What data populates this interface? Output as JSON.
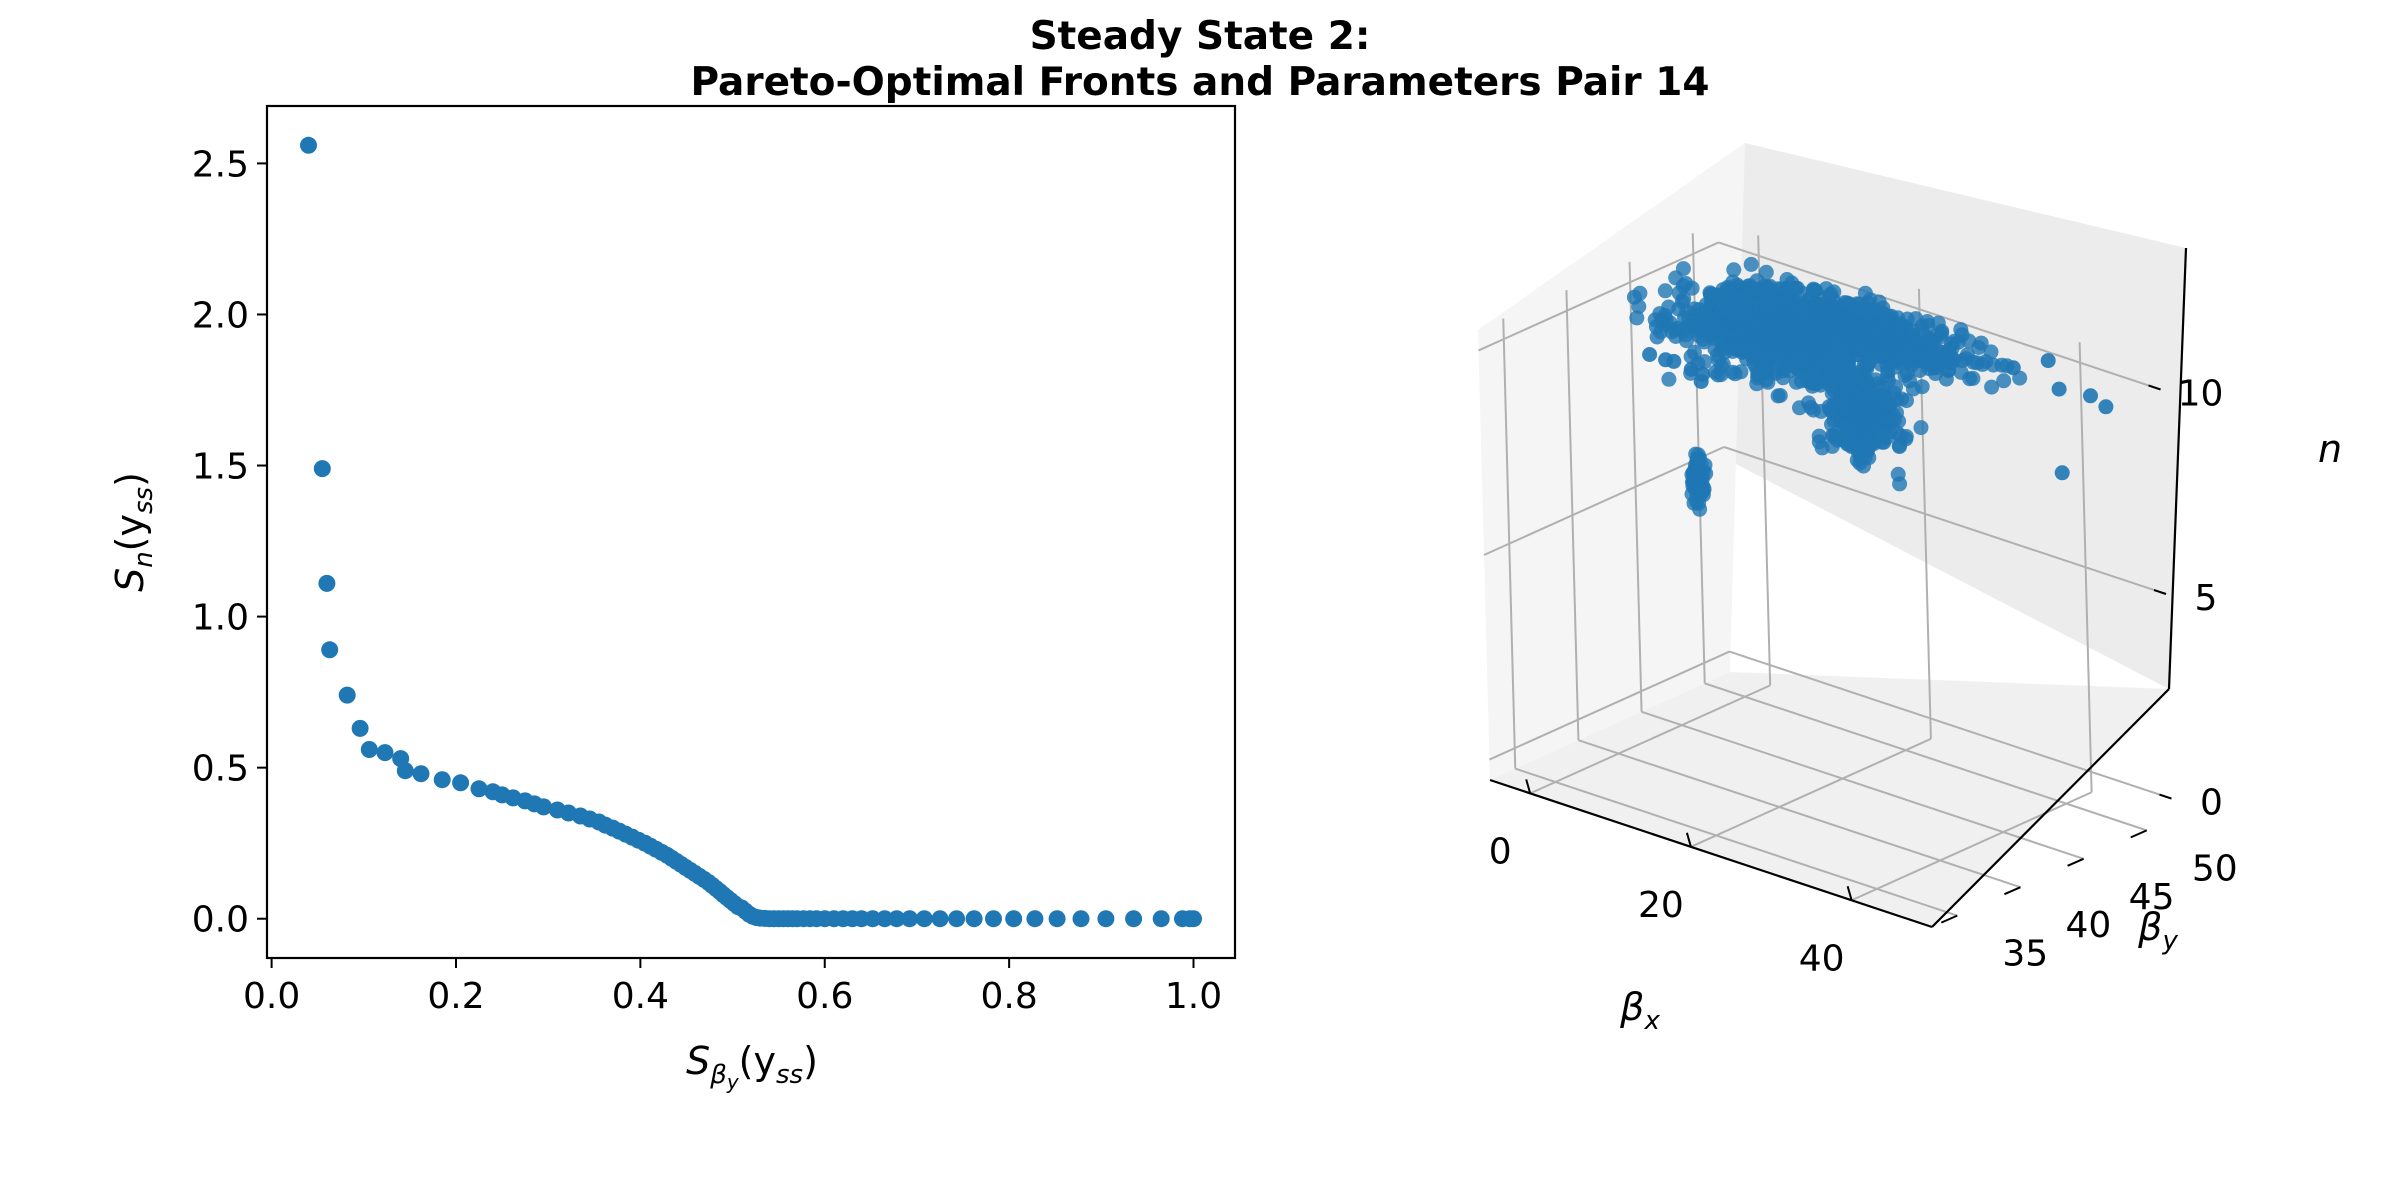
{
  "figure": {
    "title_line1": "Steady State 2:",
    "title_line2": "Pareto-Optimal Fronts and Parameters Pair 14"
  },
  "colors": {
    "marker": "#1f77b4",
    "axis": "#000000",
    "grid": "#b0b0b0",
    "pane": "#f2f2f2"
  },
  "chart_data": [
    {
      "type": "scatter",
      "xlabel_main": "S",
      "xlabel_sub": "β",
      "xlabel_subsub": "y",
      "xlabel_arg": "(y",
      "xlabel_argsub": "ss",
      "xlabel_close": ")",
      "ylabel_main": "S",
      "ylabel_sub": "n",
      "ylabel_arg": "(y",
      "ylabel_argsub": "ss",
      "ylabel_close": ")",
      "xlim": [
        -0.005,
        1.045
      ],
      "ylim": [
        -0.13,
        2.69
      ],
      "xticks": [
        0.0,
        0.2,
        0.4,
        0.6,
        0.8,
        1.0
      ],
      "xtick_labels": [
        "0.0",
        "0.2",
        "0.4",
        "0.6",
        "0.8",
        "1.0"
      ],
      "yticks": [
        0.0,
        0.5,
        1.0,
        1.5,
        2.0,
        2.5
      ],
      "ytick_labels": [
        "0.0",
        "0.5",
        "1.0",
        "1.5",
        "2.0",
        "2.5"
      ],
      "grid": false,
      "points": [
        [
          0.04,
          2.56
        ],
        [
          0.055,
          1.49
        ],
        [
          0.06,
          1.11
        ],
        [
          0.063,
          0.89
        ],
        [
          0.082,
          0.74
        ],
        [
          0.096,
          0.63
        ],
        [
          0.106,
          0.56
        ],
        [
          0.123,
          0.55
        ],
        [
          0.14,
          0.53
        ],
        [
          0.145,
          0.49
        ],
        [
          0.162,
          0.48
        ],
        [
          0.185,
          0.46
        ],
        [
          0.205,
          0.45
        ],
        [
          0.225,
          0.43
        ],
        [
          0.24,
          0.42
        ],
        [
          0.25,
          0.41
        ],
        [
          0.262,
          0.4
        ],
        [
          0.275,
          0.39
        ],
        [
          0.285,
          0.38
        ],
        [
          0.295,
          0.37
        ],
        [
          0.31,
          0.36
        ],
        [
          0.322,
          0.35
        ],
        [
          0.335,
          0.34
        ],
        [
          0.345,
          0.33
        ],
        [
          0.355,
          0.32
        ],
        [
          0.362,
          0.31
        ],
        [
          0.37,
          0.3
        ],
        [
          0.377,
          0.29
        ],
        [
          0.384,
          0.28
        ],
        [
          0.391,
          0.27
        ],
        [
          0.398,
          0.26
        ],
        [
          0.405,
          0.25
        ],
        [
          0.411,
          0.24
        ],
        [
          0.417,
          0.23
        ],
        [
          0.423,
          0.22
        ],
        [
          0.429,
          0.21
        ],
        [
          0.434,
          0.2
        ],
        [
          0.439,
          0.19
        ],
        [
          0.444,
          0.18
        ],
        [
          0.449,
          0.17
        ],
        [
          0.454,
          0.16
        ],
        [
          0.459,
          0.15
        ],
        [
          0.464,
          0.14
        ],
        [
          0.469,
          0.13
        ],
        [
          0.474,
          0.12
        ],
        [
          0.478,
          0.11
        ],
        [
          0.482,
          0.1
        ],
        [
          0.486,
          0.09
        ],
        [
          0.49,
          0.08
        ],
        [
          0.494,
          0.07
        ],
        [
          0.498,
          0.06
        ],
        [
          0.502,
          0.05
        ],
        [
          0.506,
          0.04
        ],
        [
          0.51,
          0.035
        ],
        [
          0.514,
          0.025
        ],
        [
          0.518,
          0.015
        ],
        [
          0.522,
          0.008
        ],
        [
          0.526,
          0.004
        ],
        [
          0.53,
          0.002
        ],
        [
          0.535,
          0.001
        ],
        [
          0.54,
          0.0
        ],
        [
          0.545,
          0.0
        ],
        [
          0.55,
          0.0
        ],
        [
          0.555,
          0.0
        ],
        [
          0.56,
          0.0
        ],
        [
          0.565,
          0.0
        ],
        [
          0.57,
          0.0
        ],
        [
          0.577,
          0.0
        ],
        [
          0.584,
          0.0
        ],
        [
          0.591,
          0.0
        ],
        [
          0.6,
          0.0
        ],
        [
          0.61,
          0.0
        ],
        [
          0.62,
          0.0
        ],
        [
          0.63,
          0.0
        ],
        [
          0.64,
          0.0
        ],
        [
          0.652,
          0.0
        ],
        [
          0.665,
          0.0
        ],
        [
          0.678,
          0.0
        ],
        [
          0.692,
          0.0
        ],
        [
          0.708,
          0.0
        ],
        [
          0.725,
          0.0
        ],
        [
          0.743,
          0.0
        ],
        [
          0.762,
          0.0
        ],
        [
          0.783,
          0.0
        ],
        [
          0.805,
          0.0
        ],
        [
          0.828,
          0.0
        ],
        [
          0.852,
          0.0
        ],
        [
          0.878,
          0.0
        ],
        [
          0.905,
          0.0
        ],
        [
          0.935,
          0.0
        ],
        [
          0.965,
          0.0
        ],
        [
          0.988,
          0.0
        ],
        [
          0.996,
          0.0
        ],
        [
          1.0,
          0.0
        ]
      ]
    },
    {
      "type": "scatter3d",
      "xlabel": "β",
      "xlabel_sub": "x",
      "ylabel": "β",
      "ylabel_sub": "y",
      "zlabel": "n",
      "xlim": [
        -5,
        50
      ],
      "ylim": [
        33,
        52
      ],
      "zlim": [
        -0.5,
        10.5
      ],
      "xtick_labels": [
        "0",
        "20",
        "40"
      ],
      "xtick_values": [
        0,
        20,
        40
      ],
      "ytick_labels": [
        "35",
        "40",
        "45",
        "50"
      ],
      "ytick_values": [
        35,
        40,
        45,
        50
      ],
      "ztick_labels": [
        "0",
        "5",
        "10"
      ],
      "ztick_values": [
        0,
        5,
        10
      ],
      "grid": true,
      "clusters": [
        {
          "center": [
            10,
            47,
            9.3
          ],
          "spread": [
            12,
            3.2,
            0.6
          ],
          "count": 700
        },
        {
          "center": [
            18,
            48.5,
            9.9
          ],
          "spread": [
            14,
            2.2,
            0.4
          ],
          "count": 600
        },
        {
          "center": [
            24,
            45,
            8.6
          ],
          "spread": [
            4,
            2.0,
            0.8
          ],
          "count": 300
        },
        {
          "center": [
            6,
            43,
            6.2
          ],
          "spread": [
            0.4,
            0.4,
            0.5
          ],
          "count": 80
        }
      ],
      "outliers": [
        [
          -2,
          44.5,
          8.5
        ],
        [
          0,
          44.5,
          8.5
        ],
        [
          1.5,
          44.2,
          8.6
        ],
        [
          4,
          44.0,
          8.6
        ],
        [
          6,
          43.5,
          8.5
        ],
        [
          3,
          45.5,
          8.2
        ],
        [
          44,
          47.8,
          10.2
        ],
        [
          46,
          49.0,
          10.0
        ],
        [
          49.5,
          48.0,
          10.1
        ],
        [
          47,
          46.0,
          8.6
        ],
        [
          38,
          48.0,
          10.3
        ],
        [
          40,
          49.5,
          10.4
        ]
      ]
    }
  ]
}
